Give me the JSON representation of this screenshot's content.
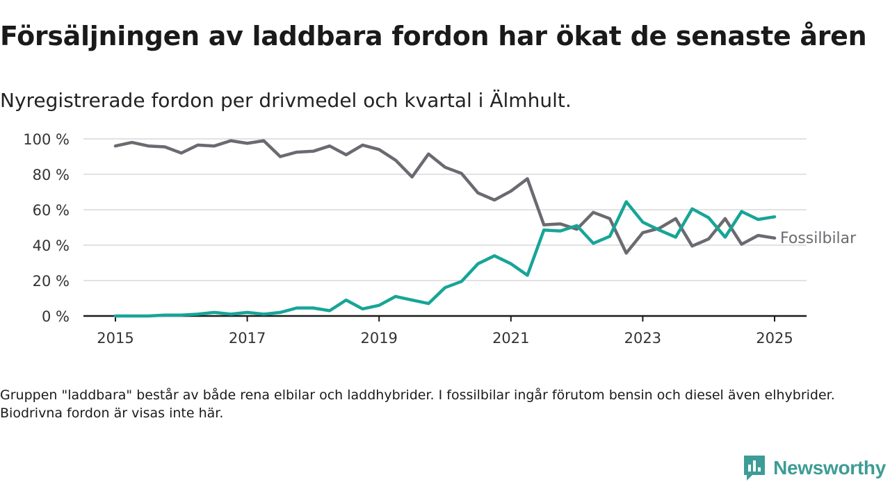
{
  "title": "Försäljningen av laddbara fordon har ökat de senaste åren",
  "subtitle": "Nyregistrerade fordon per drivmedel och kvartal i Älmhult.",
  "note": "Gruppen \"laddbara\" består av både rena elbilar och laddhybrider. I fossilbilar ingår förutom bensin och diesel även elhybrider. Biodrivna fordon är visas inte här.",
  "brand": {
    "name": "Newsworthy",
    "logo_icon": "newsworthy-logo-icon",
    "color": "#3d9c95"
  },
  "chart_data": {
    "type": "line",
    "x_tick_labels": [
      "2015",
      "2017",
      "2019",
      "2021",
      "2023",
      "2025"
    ],
    "y_tick_labels": [
      "100 %",
      "80 %",
      "60 %",
      "40 %",
      "20 %",
      "0 %"
    ],
    "ylim": [
      0,
      100
    ],
    "grid": true,
    "x": [
      "2015 Q1",
      "2015 Q2",
      "2015 Q3",
      "2015 Q4",
      "2016 Q1",
      "2016 Q2",
      "2016 Q3",
      "2016 Q4",
      "2017 Q1",
      "2017 Q2",
      "2017 Q3",
      "2017 Q4",
      "2018 Q1",
      "2018 Q2",
      "2018 Q3",
      "2018 Q4",
      "2019 Q1",
      "2019 Q2",
      "2019 Q3",
      "2019 Q4",
      "2020 Q1",
      "2020 Q2",
      "2020 Q3",
      "2020 Q4",
      "2021 Q1",
      "2021 Q2",
      "2021 Q3",
      "2021 Q4",
      "2022 Q1",
      "2022 Q2",
      "2022 Q3",
      "2022 Q4",
      "2023 Q1",
      "2023 Q2",
      "2023 Q3",
      "2023 Q4",
      "2024 Q1",
      "2024 Q2",
      "2024 Q3",
      "2024 Q4",
      "2025 Q1"
    ],
    "series": [
      {
        "name": "Fossilbilar",
        "color": "#6b6a70",
        "values": [
          96,
          98,
          96,
          95.5,
          92,
          96.5,
          96,
          99,
          97.5,
          99,
          90,
          92.5,
          93,
          96,
          91,
          96.5,
          94,
          88,
          78.5,
          91.5,
          84,
          80.5,
          69.5,
          65.5,
          70.5,
          77.5,
          51.5,
          52,
          49,
          58.5,
          55,
          35.5,
          47,
          49.5,
          55,
          39.5,
          43.5,
          55,
          40.5,
          45.5,
          44
        ]
      },
      {
        "name": "",
        "color": "#17a597",
        "values": [
          0,
          0,
          0,
          0.5,
          0.5,
          1,
          2,
          1,
          2,
          1,
          2,
          4.5,
          4.5,
          3,
          9,
          4,
          6,
          11,
          9,
          7,
          16,
          19.5,
          29.5,
          34,
          29.5,
          23,
          48.5,
          48,
          51,
          41,
          45,
          64.5,
          53,
          48.5,
          44.5,
          60.5,
          55.5,
          44.5,
          59,
          54.5,
          56
        ]
      }
    ]
  }
}
